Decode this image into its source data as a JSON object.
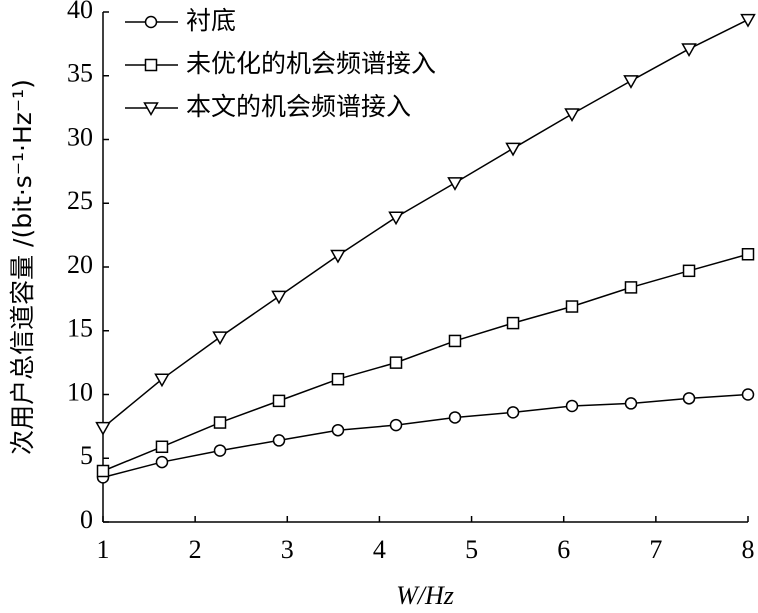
{
  "chart_data": {
    "type": "line",
    "x_label": "W/Hz",
    "y_label": "次用户总信道容量 /(bit·s⁻¹·Hz⁻¹)",
    "x": [
      1,
      1.64,
      2.27,
      2.91,
      3.55,
      4.18,
      4.82,
      5.45,
      6.09,
      6.73,
      7.36,
      8
    ],
    "series": [
      {
        "name": "衬底",
        "color": "#000000",
        "marker": "circle",
        "values": [
          3.5,
          4.7,
          5.6,
          6.4,
          7.2,
          7.6,
          8.2,
          8.6,
          9.1,
          9.3,
          9.7,
          10.0
        ]
      },
      {
        "name": "未优化的机会频谱接入",
        "color": "#000000",
        "marker": "square",
        "values": [
          4.0,
          5.9,
          7.8,
          9.5,
          11.2,
          12.5,
          14.2,
          15.6,
          16.9,
          18.4,
          19.7,
          21.0
        ]
      },
      {
        "name": "本文的机会频谱接入",
        "color": "#000000",
        "marker": "triangle-down",
        "values": [
          7.4,
          11.2,
          14.5,
          17.7,
          20.9,
          23.9,
          26.6,
          29.3,
          32.0,
          34.6,
          37.1,
          39.4
        ]
      }
    ],
    "xlim": [
      1,
      8
    ],
    "xticks": [
      1,
      2,
      3,
      4,
      5,
      6,
      7,
      8
    ],
    "ylim": [
      0,
      40
    ],
    "yticks": [
      0,
      5,
      10,
      15,
      20,
      25,
      30,
      35,
      40
    ],
    "grid": false,
    "legend": "upper-left"
  }
}
